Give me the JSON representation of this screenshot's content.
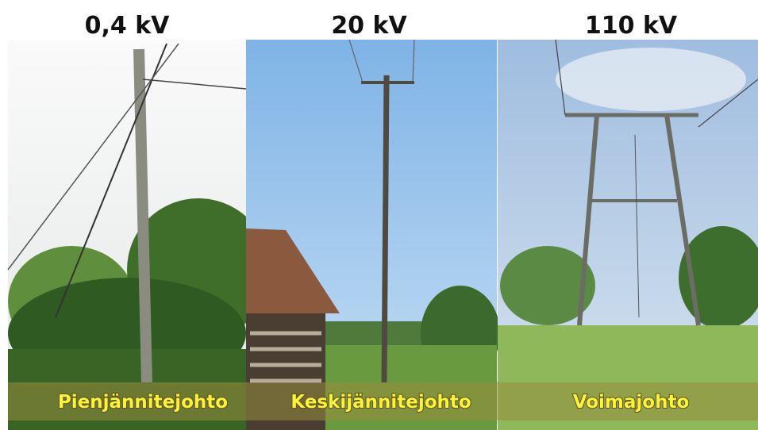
{
  "panels": [
    {
      "voltage": "0,4 kV",
      "label": "Pienjännitejohto"
    },
    {
      "voltage": "20 kV",
      "label": "Keskijännitejohto"
    },
    {
      "voltage": "110 kV",
      "label": "Voimajohto"
    }
  ]
}
